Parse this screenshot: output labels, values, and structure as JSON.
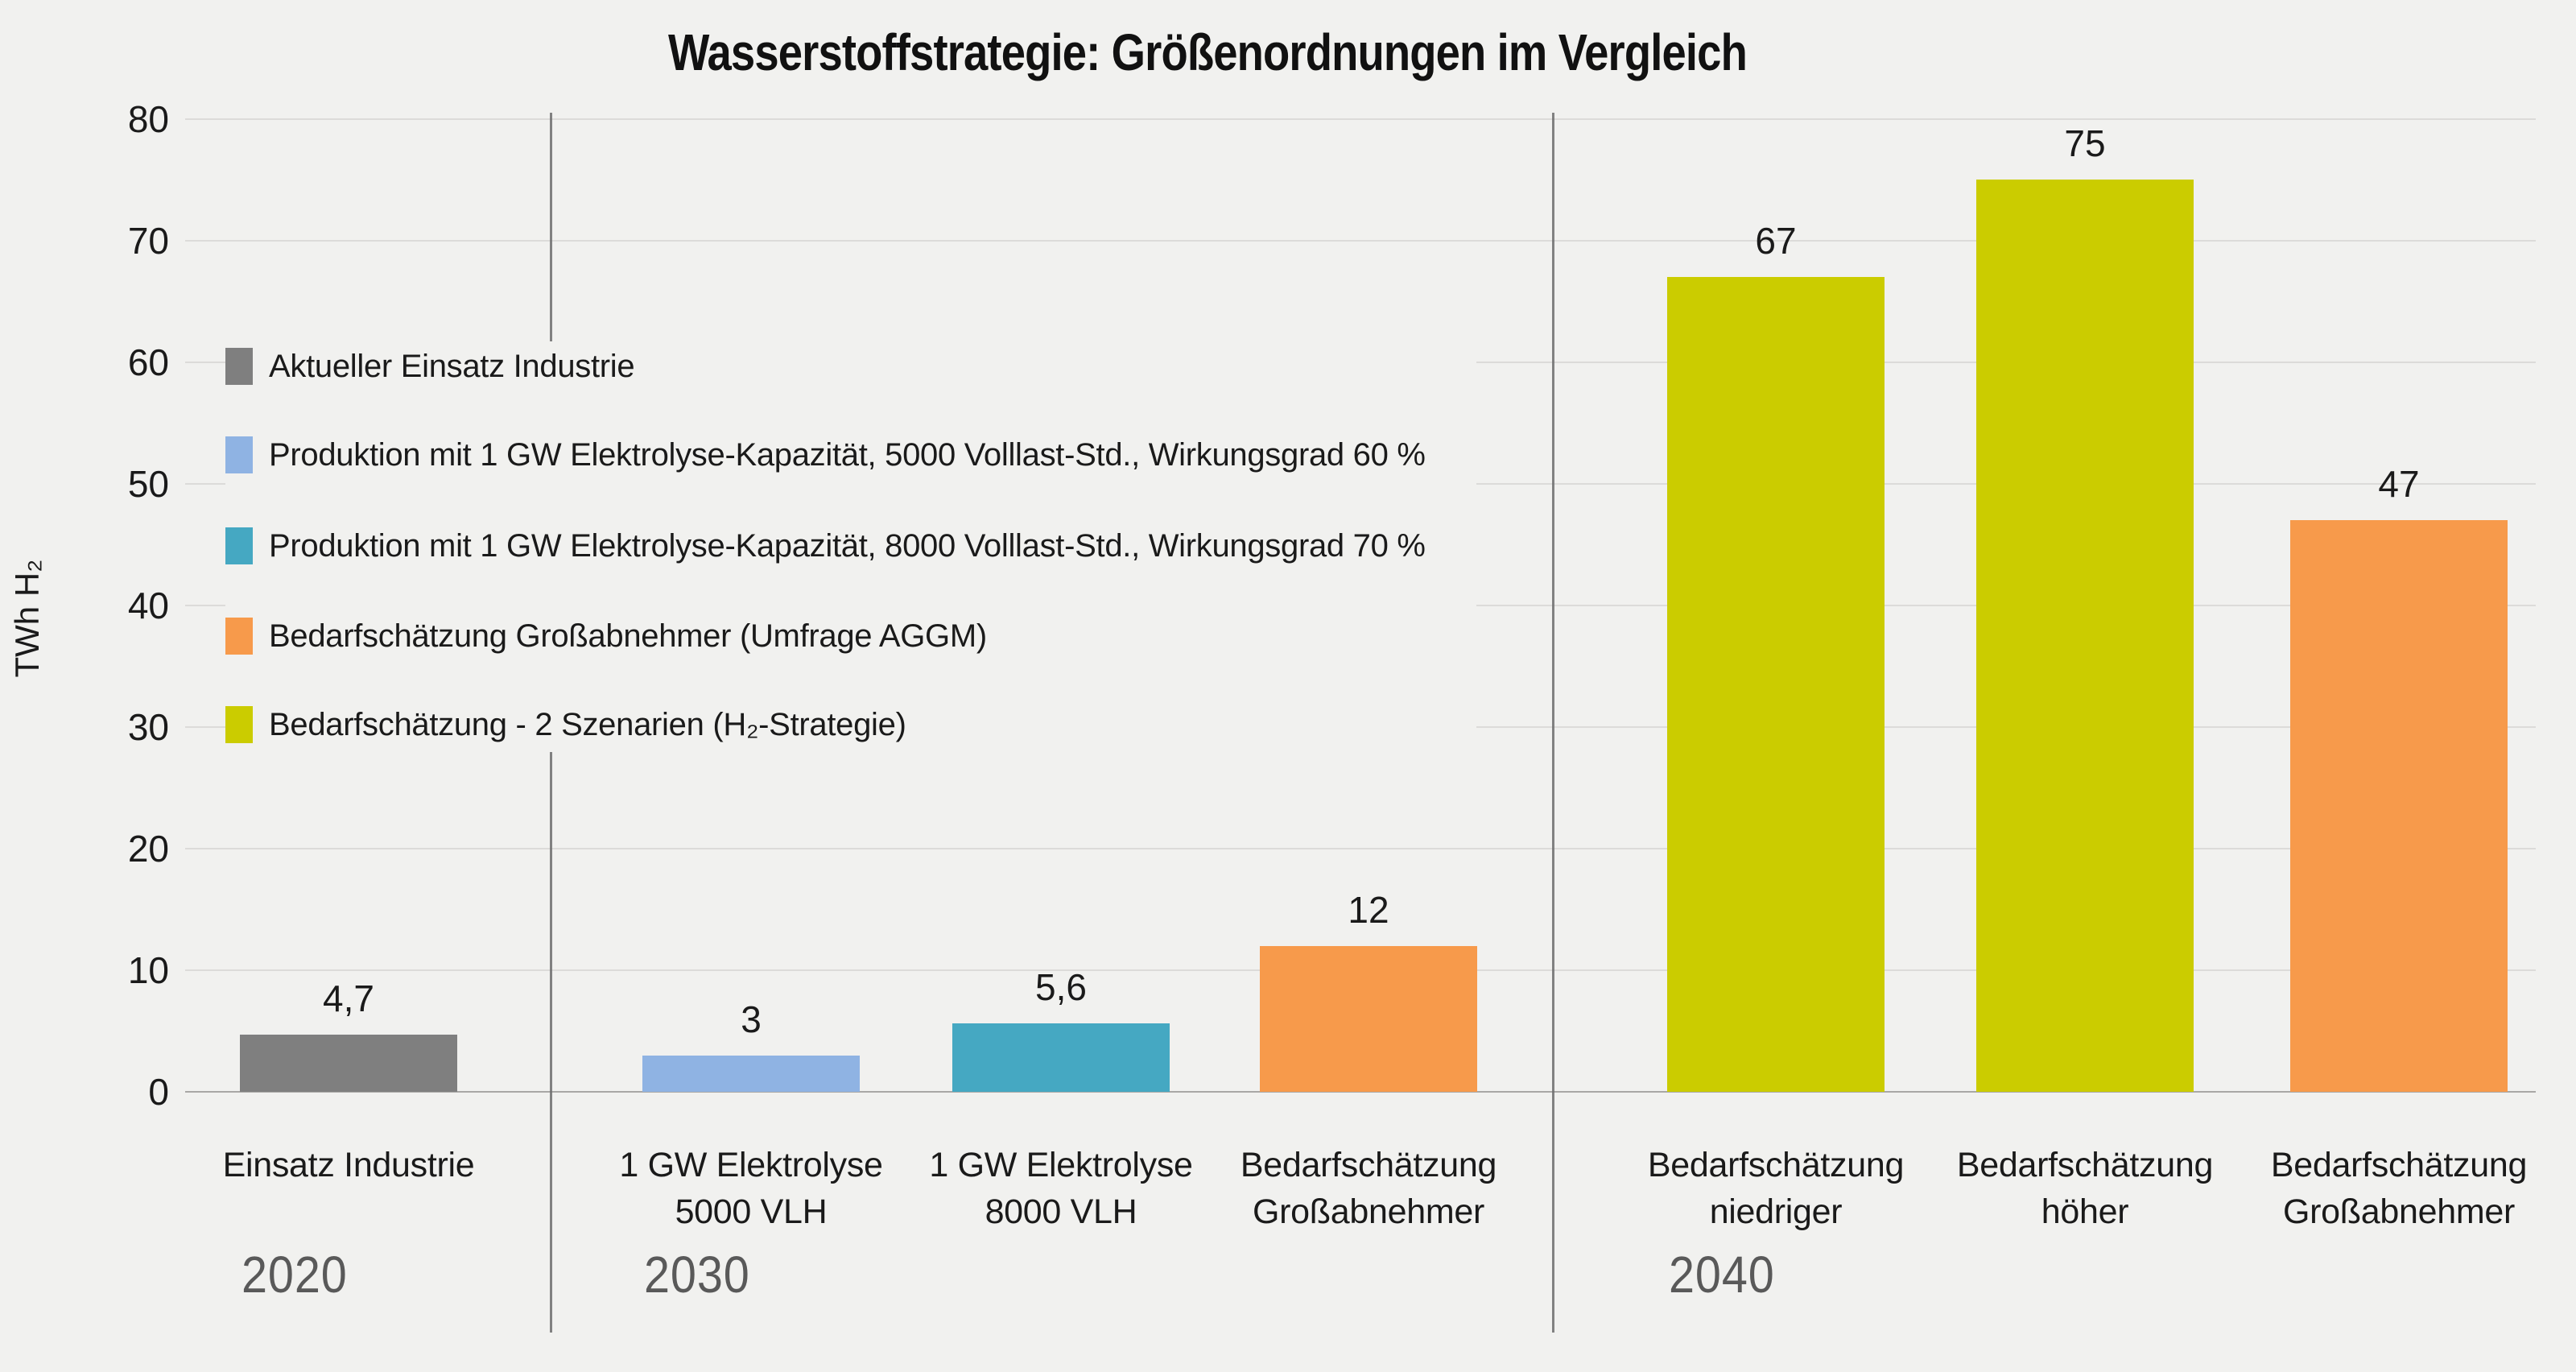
{
  "title": "Wasserstoffstrategie: Größenordnungen im Vergleich",
  "colors": {
    "background": "#f1f1ef",
    "gridline": "#dcdbd9",
    "baseline": "#a9a8a6",
    "divider": "#6d6d6d",
    "text": "#1a1a1a",
    "year_label": "#595959",
    "series_gray": "#7f7f7f",
    "series_lightblue": "#8fb3e3",
    "series_teal": "#45a8c2",
    "series_orange": "#f79a4b",
    "series_yellowgreen": "#cbcc00"
  },
  "chart_data": {
    "type": "bar",
    "title": "Wasserstoffstrategie: Größenordnungen im Vergleich",
    "xlabel": "",
    "ylabel": "TWh H₂",
    "ylim": [
      0,
      80
    ],
    "yticks": [
      0,
      10,
      20,
      30,
      40,
      50,
      60,
      70,
      80
    ],
    "grid": true,
    "legend_position": "upper-left-inside",
    "legend": [
      {
        "label": "Aktueller Einsatz Industrie",
        "color": "#7f7f7f"
      },
      {
        "label": "Produktion mit 1 GW Elektrolyse-Kapazität, 5000 Volllast-Std., Wirkungsgrad 60 %",
        "color": "#8fb3e3"
      },
      {
        "label": "Produktion mit 1 GW Elektrolyse-Kapazität, 8000 Volllast-Std., Wirkungsgrad 70 %",
        "color": "#45a8c2"
      },
      {
        "label": "Bedarfschätzung Großabnehmer (Umfrage AGGM)",
        "color": "#f79a4b"
      },
      {
        "label": "Bedarfschätzung - 2 Szenarien (H₂-Strategie)",
        "color": "#cbcc00"
      }
    ],
    "groups": [
      {
        "group_label": "2020",
        "bars": [
          {
            "category_lines": [
              "Einsatz Industrie"
            ],
            "value": 4.7,
            "value_label": "4,7",
            "series": "Aktueller Einsatz Industrie",
            "color": "#7f7f7f"
          }
        ]
      },
      {
        "group_label": "2030",
        "bars": [
          {
            "category_lines": [
              "1 GW Elektrolyse",
              "5000 VLH"
            ],
            "value": 3,
            "value_label": "3",
            "series": "Produktion mit 1 GW Elektrolyse-Kapazität, 5000 Volllast-Std., Wirkungsgrad 60 %",
            "color": "#8fb3e3"
          },
          {
            "category_lines": [
              "1 GW Elektrolyse",
              "8000 VLH"
            ],
            "value": 5.6,
            "value_label": "5,6",
            "series": "Produktion mit 1 GW Elektrolyse-Kapazität, 8000 Volllast-Std., Wirkungsgrad 70 %",
            "color": "#45a8c2"
          },
          {
            "category_lines": [
              "Bedarfschätzung",
              "Großabnehmer"
            ],
            "value": 12,
            "value_label": "12",
            "series": "Bedarfschätzung Großabnehmer (Umfrage AGGM)",
            "color": "#f79a4b"
          }
        ]
      },
      {
        "group_label": "2040",
        "bars": [
          {
            "category_lines": [
              "Bedarfschätzung",
              "niedriger"
            ],
            "value": 67,
            "value_label": "67",
            "series": "Bedarfschätzung - 2 Szenarien (H₂-Strategie)",
            "color": "#cbcc00"
          },
          {
            "category_lines": [
              "Bedarfschätzung",
              "höher"
            ],
            "value": 75,
            "value_label": "75",
            "series": "Bedarfschätzung - 2 Szenarien (H₂-Strategie)",
            "color": "#cbcc00"
          },
          {
            "category_lines": [
              "Bedarfschätzung",
              "Großabnehmer"
            ],
            "value": 47,
            "value_label": "47",
            "series": "Bedarfschätzung Großabnehmer (Umfrage AGGM)",
            "color": "#f79a4b"
          }
        ]
      }
    ]
  }
}
